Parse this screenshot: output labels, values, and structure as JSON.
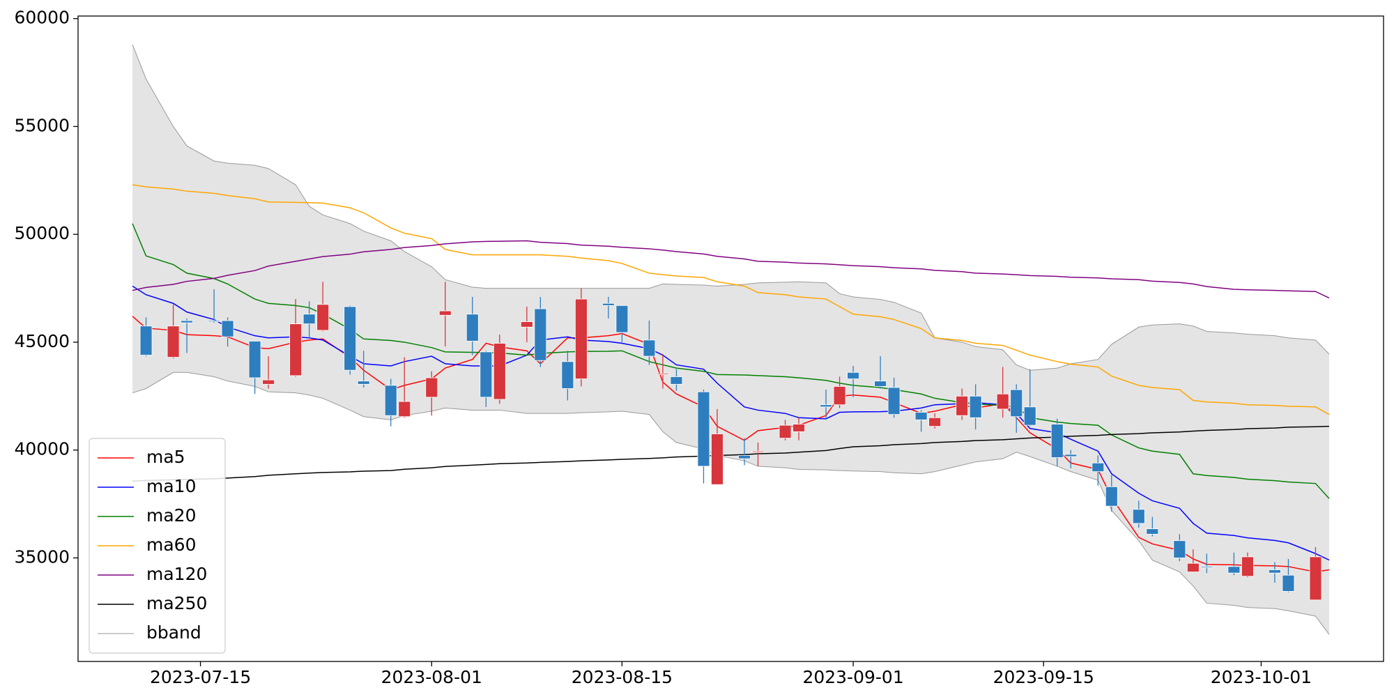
{
  "chart_data": {
    "type": "candlestick",
    "x": [
      "2023-07-10",
      "2023-07-11",
      "2023-07-13",
      "2023-07-14",
      "2023-07-16",
      "2023-07-17",
      "2023-07-19",
      "2023-07-20",
      "2023-07-22",
      "2023-07-23",
      "2023-07-24",
      "2023-07-26",
      "2023-07-27",
      "2023-07-29",
      "2023-07-30",
      "2023-08-01",
      "2023-08-02",
      "2023-08-04",
      "2023-08-05",
      "2023-08-06",
      "2023-08-08",
      "2023-08-09",
      "2023-08-11",
      "2023-08-12",
      "2023-08-14",
      "2023-08-15",
      "2023-08-17",
      "2023-08-18",
      "2023-08-19",
      "2023-08-21",
      "2023-08-22",
      "2023-08-24",
      "2023-08-25",
      "2023-08-27",
      "2023-08-28",
      "2023-08-30",
      "2023-08-31",
      "2023-09-01",
      "2023-09-03",
      "2023-09-04",
      "2023-09-06",
      "2023-09-07",
      "2023-09-09",
      "2023-09-10",
      "2023-09-12",
      "2023-09-13",
      "2023-09-14",
      "2023-09-16",
      "2023-09-17",
      "2023-09-19",
      "2023-09-20",
      "2023-09-22",
      "2023-09-23",
      "2023-09-25",
      "2023-09-26",
      "2023-09-27",
      "2023-09-29",
      "2023-09-30",
      "2023-10-02",
      "2023-10-03",
      "2023-10-05",
      "2023-10-06"
    ],
    "candles": {
      "up_color": "#d7363c",
      "down_color": "#2e7ebf",
      "open": [
        null,
        45750,
        44300,
        46000,
        46000,
        46000,
        45050,
        43050,
        43450,
        46300,
        45550,
        46650,
        43200,
        43000,
        41550,
        42450,
        46250,
        46300,
        44550,
        42350,
        45700,
        46550,
        44100,
        43300,
        46800,
        46700,
        45100,
        43500,
        43400,
        42700,
        38400,
        39750,
        39900,
        40550,
        40850,
        42100,
        42100,
        43600,
        43200,
        42900,
        41750,
        41100,
        41600,
        42500,
        41900,
        42800,
        42000,
        41200,
        39800,
        39400,
        38300,
        37250,
        36350,
        35800,
        34350,
        34600,
        34600,
        34150,
        34450,
        34200,
        33050,
        null
      ],
      "high": [
        null,
        46150,
        46750,
        46100,
        47450,
        46150,
        45050,
        44350,
        47000,
        46900,
        47800,
        46700,
        44600,
        43300,
        44300,
        43650,
        47800,
        47100,
        44600,
        45350,
        46650,
        47100,
        44600,
        47500,
        47100,
        46700,
        46000,
        44450,
        43750,
        42800,
        41900,
        40550,
        40350,
        41400,
        41500,
        42800,
        43400,
        43900,
        44350,
        43350,
        41850,
        41700,
        42850,
        43050,
        43850,
        43050,
        43750,
        41450,
        40000,
        39750,
        38850,
        37650,
        36900,
        36100,
        35400,
        35200,
        35250,
        35250,
        34800,
        34950,
        35500,
        null
      ],
      "low": [
        null,
        44350,
        44250,
        44500,
        45900,
        44800,
        42600,
        42850,
        43400,
        45200,
        45500,
        43500,
        42900,
        41100,
        41500,
        41600,
        44800,
        44400,
        42000,
        42150,
        45000,
        43850,
        42300,
        42950,
        46100,
        45000,
        43950,
        42850,
        42750,
        38450,
        38400,
        39300,
        39250,
        40450,
        40450,
        41400,
        41950,
        42450,
        42850,
        41500,
        40850,
        41000,
        41400,
        40950,
        41500,
        40800,
        41100,
        39250,
        39150,
        38350,
        37150,
        36400,
        36000,
        34850,
        34350,
        34300,
        34200,
        34100,
        33850,
        33400,
        33050,
        null
      ],
      "close": [
        null,
        44400,
        45750,
        45900,
        45950,
        45250,
        43350,
        43250,
        45850,
        45850,
        46750,
        43700,
        43050,
        41600,
        42250,
        43350,
        46450,
        45050,
        42450,
        44950,
        45950,
        44150,
        42850,
        47000,
        46700,
        45450,
        44350,
        43550,
        43050,
        39250,
        40750,
        39600,
        39950,
        41150,
        41200,
        42000,
        42950,
        43300,
        42950,
        41650,
        41400,
        41500,
        42500,
        41500,
        42600,
        41550,
        41150,
        39650,
        39700,
        39000,
        37400,
        36600,
        36100,
        35000,
        34750,
        34550,
        34300,
        35050,
        34300,
        33450,
        35050,
        null
      ]
    },
    "series": [
      {
        "name": "ma5",
        "color": "#ff0000",
        "values": [
          46200,
          45650,
          45550,
          45350,
          45300,
          45250,
          44750,
          44700,
          45000,
          45100,
          45150,
          44300,
          43700,
          42800,
          43000,
          43300,
          43800,
          44200,
          44950,
          44780,
          44600,
          44000,
          45200,
          45200,
          45300,
          45400,
          44900,
          43150,
          42600,
          42000,
          41100,
          40450,
          40900,
          41050,
          41150,
          41600,
          42500,
          42550,
          42450,
          42200,
          41700,
          41800,
          42100,
          41950,
          42150,
          41500,
          40800,
          40050,
          39400,
          39100,
          37800,
          35950,
          35650,
          35350,
          34950,
          34700,
          34680,
          34650,
          34630,
          34600,
          34350,
          34450
        ]
      },
      {
        "name": "ma10",
        "color": "#0000ff",
        "values": [
          47600,
          47200,
          46800,
          46400,
          46050,
          45700,
          45300,
          45200,
          45250,
          45200,
          45100,
          44350,
          44000,
          43900,
          44100,
          44350,
          44000,
          43900,
          43900,
          43900,
          44400,
          45100,
          45250,
          45100,
          45030,
          44950,
          44700,
          44400,
          43950,
          43750,
          43100,
          42000,
          41850,
          41700,
          41500,
          41450,
          41750,
          41770,
          41780,
          41800,
          41950,
          42100,
          42150,
          42200,
          42100,
          41700,
          41000,
          40800,
          40500,
          39950,
          38900,
          38000,
          37650,
          37300,
          36600,
          36150,
          36040,
          35930,
          35810,
          35700,
          35200,
          34900
        ]
      },
      {
        "name": "ma20",
        "color": "#008000",
        "values": [
          50500,
          49000,
          48600,
          48200,
          47950,
          47700,
          47000,
          46800,
          46700,
          46600,
          46300,
          45600,
          45150,
          45080,
          45000,
          44750,
          44550,
          44530,
          44520,
          44500,
          44400,
          44480,
          44550,
          44570,
          44580,
          44600,
          44100,
          43950,
          43800,
          43650,
          43500,
          43480,
          43450,
          43400,
          43350,
          43230,
          43100,
          43000,
          42900,
          42800,
          42600,
          42400,
          42200,
          42130,
          42070,
          42000,
          41500,
          41300,
          41230,
          41150,
          40700,
          40100,
          39950,
          39800,
          38900,
          38820,
          38730,
          38650,
          38580,
          38520,
          38450,
          37750
        ]
      },
      {
        "name": "ma60",
        "color": "#ffa500",
        "values": [
          52300,
          52200,
          52100,
          52000,
          51900,
          51800,
          51650,
          51500,
          51480,
          51470,
          51450,
          51230,
          51000,
          50300,
          50050,
          49800,
          49300,
          49050,
          49050,
          49050,
          49050,
          49050,
          48980,
          48900,
          48780,
          48650,
          48200,
          48130,
          48070,
          48000,
          47800,
          47600,
          47300,
          47200,
          47100,
          47000,
          46650,
          46300,
          46180,
          46050,
          45630,
          45200,
          45080,
          44950,
          44850,
          44630,
          44400,
          44100,
          43980,
          43850,
          43430,
          43000,
          42900,
          42800,
          42300,
          42230,
          42170,
          42100,
          42070,
          42030,
          42000,
          41650
        ]
      },
      {
        "name": "ma120",
        "color": "#800080",
        "values": [
          47400,
          47540,
          47680,
          47820,
          47960,
          48100,
          48320,
          48530,
          48750,
          48860,
          48970,
          49080,
          49190,
          49300,
          49390,
          49480,
          49560,
          49650,
          49670,
          49680,
          49700,
          49630,
          49570,
          49500,
          49450,
          49400,
          49330,
          49270,
          49200,
          49090,
          48980,
          48860,
          48750,
          48710,
          48670,
          48630,
          48590,
          48550,
          48500,
          48450,
          48400,
          48330,
          48270,
          48200,
          48160,
          48130,
          48090,
          48050,
          48010,
          47980,
          47940,
          47900,
          47830,
          47770,
          47700,
          47580,
          47450,
          47430,
          47400,
          47380,
          47350,
          47050
        ]
      },
      {
        "name": "ma250",
        "color": "#000000",
        "values": [
          38560,
          38590,
          38620,
          38640,
          38670,
          38700,
          38770,
          38830,
          38900,
          38930,
          38960,
          38990,
          39020,
          39050,
          39110,
          39180,
          39240,
          39300,
          39330,
          39370,
          39400,
          39430,
          39470,
          39500,
          39540,
          39570,
          39610,
          39640,
          39680,
          39720,
          39750,
          39790,
          39830,
          39860,
          39900,
          39980,
          40070,
          40150,
          40200,
          40250,
          40300,
          40350,
          40400,
          40440,
          40480,
          40520,
          40560,
          40600,
          40640,
          40680,
          40720,
          40760,
          40800,
          40840,
          40880,
          40910,
          40950,
          40990,
          41020,
          41060,
          41080,
          41100
        ]
      },
      {
        "name": "bband",
        "color": "#999999",
        "fill_color": "#e4e4e4",
        "upper": [
          58800,
          57200,
          55000,
          54100,
          53400,
          53300,
          53200,
          53050,
          52300,
          51300,
          50900,
          50500,
          50150,
          49700,
          49200,
          48500,
          47900,
          47550,
          47500,
          47500,
          47500,
          47500,
          47500,
          47500,
          47500,
          47500,
          47500,
          47700,
          47680,
          47650,
          47600,
          47680,
          47750,
          47780,
          47800,
          47750,
          47250,
          47100,
          46980,
          46850,
          46350,
          45200,
          45000,
          44800,
          44650,
          43950,
          43700,
          43800,
          44000,
          44200,
          44900,
          45700,
          45800,
          45850,
          45750,
          45500,
          45430,
          45370,
          45300,
          45200,
          45100,
          44450
        ],
        "lower": [
          42650,
          42850,
          43600,
          43600,
          43400,
          43200,
          42950,
          42700,
          42650,
          42550,
          42400,
          41850,
          41550,
          41400,
          41600,
          41800,
          41950,
          41850,
          41850,
          41850,
          41700,
          41700,
          41700,
          41730,
          41770,
          41800,
          41650,
          40850,
          40350,
          40050,
          39750,
          39500,
          39250,
          39180,
          39100,
          39080,
          39050,
          39030,
          39000,
          38950,
          38900,
          39000,
          39300,
          39450,
          39600,
          39900,
          39700,
          39250,
          39000,
          38600,
          37200,
          35800,
          34900,
          34350,
          33700,
          32900,
          32800,
          32700,
          32650,
          32550,
          32300,
          31450
        ]
      }
    ],
    "xlim": [
      "2023-07-06",
      "2023-10-10"
    ],
    "xticks": [
      "2023-07-15",
      "2023-08-01",
      "2023-08-15",
      "2023-09-01",
      "2023-09-15",
      "2023-10-01"
    ],
    "ylim": [
      30200,
      60120
    ],
    "yticks": [
      35000,
      40000,
      45000,
      50000,
      55000,
      60000
    ],
    "legend": "lower left"
  }
}
